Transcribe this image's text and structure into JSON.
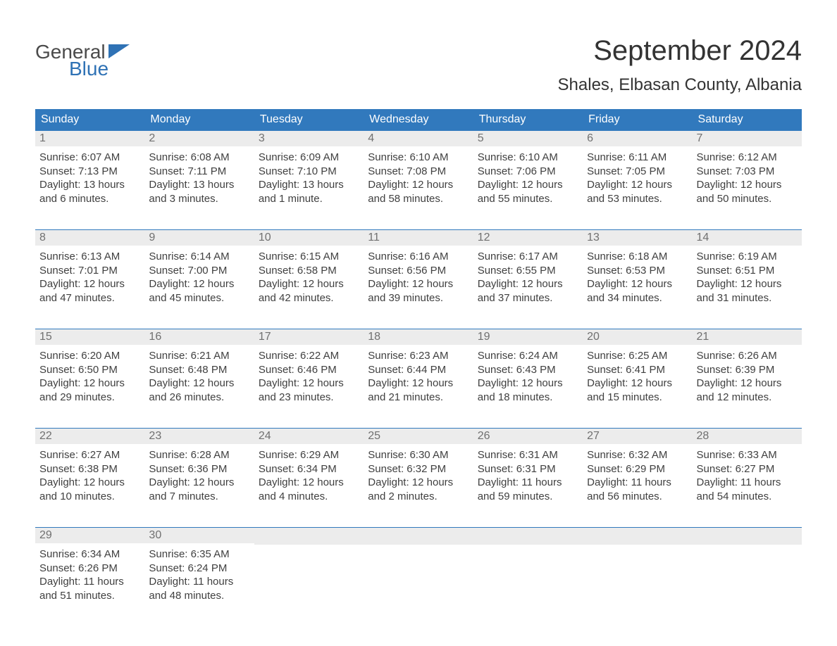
{
  "logo": {
    "text_top": "General",
    "text_bottom": "Blue",
    "flag_color": "#2f72b5"
  },
  "title": "September 2024",
  "location": "Shales, Elbasan County, Albania",
  "colors": {
    "header_bg": "#3179bd",
    "header_text": "#ffffff",
    "daynum_bg": "#ececec",
    "daynum_text": "#707070",
    "body_text": "#404040",
    "week_border": "#3179bd",
    "page_bg": "#ffffff"
  },
  "typography": {
    "month_title_fontsize": 40,
    "location_fontsize": 24,
    "dow_fontsize": 16,
    "daynum_fontsize": 16,
    "body_fontsize": 15
  },
  "days_of_week": [
    "Sunday",
    "Monday",
    "Tuesday",
    "Wednesday",
    "Thursday",
    "Friday",
    "Saturday"
  ],
  "weeks": [
    [
      {
        "n": "1",
        "sunrise": "6:07 AM",
        "sunset": "7:13 PM",
        "daylight": "13 hours and 6 minutes."
      },
      {
        "n": "2",
        "sunrise": "6:08 AM",
        "sunset": "7:11 PM",
        "daylight": "13 hours and 3 minutes."
      },
      {
        "n": "3",
        "sunrise": "6:09 AM",
        "sunset": "7:10 PM",
        "daylight": "13 hours and 1 minute."
      },
      {
        "n": "4",
        "sunrise": "6:10 AM",
        "sunset": "7:08 PM",
        "daylight": "12 hours and 58 minutes."
      },
      {
        "n": "5",
        "sunrise": "6:10 AM",
        "sunset": "7:06 PM",
        "daylight": "12 hours and 55 minutes."
      },
      {
        "n": "6",
        "sunrise": "6:11 AM",
        "sunset": "7:05 PM",
        "daylight": "12 hours and 53 minutes."
      },
      {
        "n": "7",
        "sunrise": "6:12 AM",
        "sunset": "7:03 PM",
        "daylight": "12 hours and 50 minutes."
      }
    ],
    [
      {
        "n": "8",
        "sunrise": "6:13 AM",
        "sunset": "7:01 PM",
        "daylight": "12 hours and 47 minutes."
      },
      {
        "n": "9",
        "sunrise": "6:14 AM",
        "sunset": "7:00 PM",
        "daylight": "12 hours and 45 minutes."
      },
      {
        "n": "10",
        "sunrise": "6:15 AM",
        "sunset": "6:58 PM",
        "daylight": "12 hours and 42 minutes."
      },
      {
        "n": "11",
        "sunrise": "6:16 AM",
        "sunset": "6:56 PM",
        "daylight": "12 hours and 39 minutes."
      },
      {
        "n": "12",
        "sunrise": "6:17 AM",
        "sunset": "6:55 PM",
        "daylight": "12 hours and 37 minutes."
      },
      {
        "n": "13",
        "sunrise": "6:18 AM",
        "sunset": "6:53 PM",
        "daylight": "12 hours and 34 minutes."
      },
      {
        "n": "14",
        "sunrise": "6:19 AM",
        "sunset": "6:51 PM",
        "daylight": "12 hours and 31 minutes."
      }
    ],
    [
      {
        "n": "15",
        "sunrise": "6:20 AM",
        "sunset": "6:50 PM",
        "daylight": "12 hours and 29 minutes."
      },
      {
        "n": "16",
        "sunrise": "6:21 AM",
        "sunset": "6:48 PM",
        "daylight": "12 hours and 26 minutes."
      },
      {
        "n": "17",
        "sunrise": "6:22 AM",
        "sunset": "6:46 PM",
        "daylight": "12 hours and 23 minutes."
      },
      {
        "n": "18",
        "sunrise": "6:23 AM",
        "sunset": "6:44 PM",
        "daylight": "12 hours and 21 minutes."
      },
      {
        "n": "19",
        "sunrise": "6:24 AM",
        "sunset": "6:43 PM",
        "daylight": "12 hours and 18 minutes."
      },
      {
        "n": "20",
        "sunrise": "6:25 AM",
        "sunset": "6:41 PM",
        "daylight": "12 hours and 15 minutes."
      },
      {
        "n": "21",
        "sunrise": "6:26 AM",
        "sunset": "6:39 PM",
        "daylight": "12 hours and 12 minutes."
      }
    ],
    [
      {
        "n": "22",
        "sunrise": "6:27 AM",
        "sunset": "6:38 PM",
        "daylight": "12 hours and 10 minutes."
      },
      {
        "n": "23",
        "sunrise": "6:28 AM",
        "sunset": "6:36 PM",
        "daylight": "12 hours and 7 minutes."
      },
      {
        "n": "24",
        "sunrise": "6:29 AM",
        "sunset": "6:34 PM",
        "daylight": "12 hours and 4 minutes."
      },
      {
        "n": "25",
        "sunrise": "6:30 AM",
        "sunset": "6:32 PM",
        "daylight": "12 hours and 2 minutes."
      },
      {
        "n": "26",
        "sunrise": "6:31 AM",
        "sunset": "6:31 PM",
        "daylight": "11 hours and 59 minutes."
      },
      {
        "n": "27",
        "sunrise": "6:32 AM",
        "sunset": "6:29 PM",
        "daylight": "11 hours and 56 minutes."
      },
      {
        "n": "28",
        "sunrise": "6:33 AM",
        "sunset": "6:27 PM",
        "daylight": "11 hours and 54 minutes."
      }
    ],
    [
      {
        "n": "29",
        "sunrise": "6:34 AM",
        "sunset": "6:26 PM",
        "daylight": "11 hours and 51 minutes."
      },
      {
        "n": "30",
        "sunrise": "6:35 AM",
        "sunset": "6:24 PM",
        "daylight": "11 hours and 48 minutes."
      },
      null,
      null,
      null,
      null,
      null
    ]
  ],
  "labels": {
    "sunrise": "Sunrise:",
    "sunset": "Sunset:",
    "daylight": "Daylight:"
  }
}
